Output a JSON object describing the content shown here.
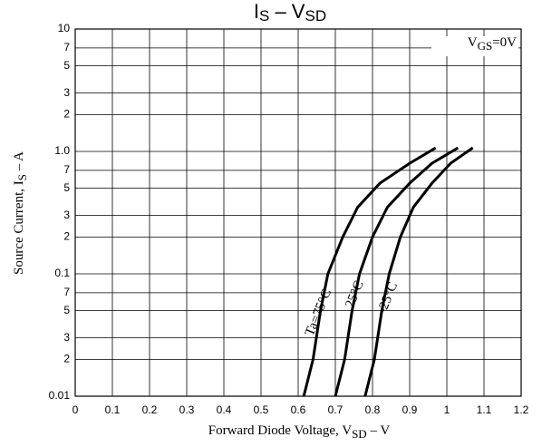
{
  "chart_data": {
    "type": "line",
    "title": [
      "I",
      "S",
      " – V",
      "SD"
    ],
    "x_label": [
      "Forward Diode Voltage, V",
      "SD",
      " – V"
    ],
    "y_label": [
      "Source Current, I",
      "S",
      " – A"
    ],
    "annotation": [
      "V",
      "GS",
      "=0V"
    ],
    "log_y": true,
    "grid": true,
    "xlim": [
      0,
      1.2
    ],
    "ylim": [
      0.01,
      10
    ],
    "xticks": [
      0,
      0.1,
      0.2,
      0.3,
      0.4,
      0.5,
      0.6,
      0.7,
      0.8,
      0.9,
      1.0,
      1.1,
      1.2
    ],
    "yticks": [
      0.01,
      {
        "value": 0.02,
        "label": "2"
      },
      {
        "value": 0.03,
        "label": "3"
      },
      {
        "value": 0.05,
        "label": "5"
      },
      {
        "value": 0.07,
        "label": "7"
      },
      0.1,
      {
        "value": 0.2,
        "label": "2"
      },
      {
        "value": 0.3,
        "label": "3"
      },
      {
        "value": 0.5,
        "label": "5"
      },
      {
        "value": 0.7,
        "label": "7"
      },
      {
        "value": 1,
        "label": "1.0"
      },
      {
        "value": 2,
        "label": "2"
      },
      {
        "value": 3,
        "label": "3"
      },
      {
        "value": 5,
        "label": "5"
      },
      {
        "value": 7,
        "label": "7"
      },
      10
    ],
    "series": [
      {
        "name": "Ta=75°C",
        "color": "#000000",
        "x": [
          0.615,
          0.64,
          0.66,
          0.68,
          0.72,
          0.76,
          0.82,
          0.9,
          0.97
        ],
        "values": [
          0.01,
          0.02,
          0.05,
          0.1,
          0.2,
          0.35,
          0.55,
          0.8,
          1.07
        ]
      },
      {
        "name": "25°C",
        "color": "#000000",
        "x": [
          0.7,
          0.725,
          0.745,
          0.765,
          0.8,
          0.84,
          0.9,
          0.96,
          1.03
        ],
        "values": [
          0.01,
          0.02,
          0.05,
          0.1,
          0.2,
          0.35,
          0.55,
          0.8,
          1.07
        ]
      },
      {
        "name": "–25°C",
        "color": "#000000",
        "x": [
          0.78,
          0.805,
          0.825,
          0.845,
          0.875,
          0.91,
          0.96,
          1.01,
          1.07
        ],
        "values": [
          0.01,
          0.02,
          0.05,
          0.1,
          0.2,
          0.35,
          0.55,
          0.8,
          1.07
        ]
      }
    ]
  }
}
